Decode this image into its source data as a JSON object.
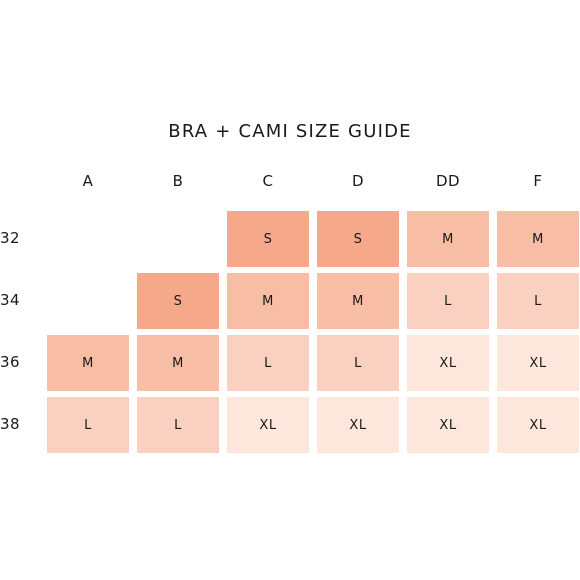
{
  "chart_data": {
    "type": "table",
    "title": "BRA + CAMI SIZE GUIDE",
    "columns": [
      "A",
      "B",
      "C",
      "D",
      "DD",
      "F"
    ],
    "rows": [
      "32",
      "34",
      "36",
      "38"
    ],
    "cells": [
      [
        "",
        "",
        "S",
        "S",
        "M",
        "M"
      ],
      [
        "",
        "S",
        "M",
        "M",
        "L",
        "L"
      ],
      [
        "M",
        "M",
        "L",
        "L",
        "XL",
        "XL"
      ],
      [
        "L",
        "L",
        "XL",
        "XL",
        "XL",
        "XL"
      ]
    ],
    "size_colors": {
      "S": "#f5a98a",
      "M": "#f7bda5",
      "L": "#fad0c0",
      "XL": "#fde6dc"
    }
  }
}
